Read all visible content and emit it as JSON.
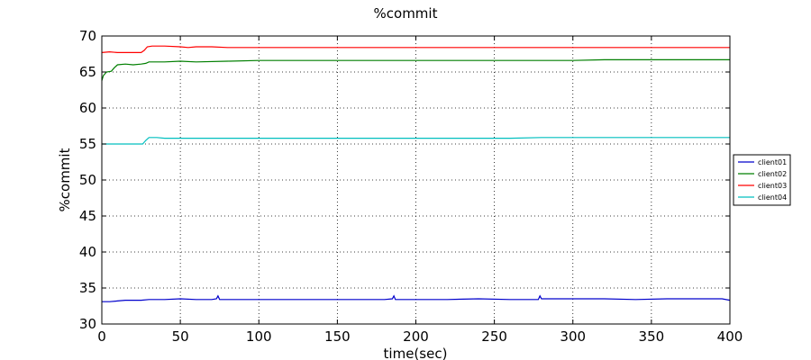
{
  "chart_data": {
    "type": "line",
    "title": "%commit",
    "xlabel": "time(sec)",
    "ylabel": "%commit",
    "xlim": [
      0,
      400
    ],
    "ylim": [
      30,
      70
    ],
    "xticks": [
      0,
      50,
      100,
      150,
      200,
      250,
      300,
      350,
      400
    ],
    "yticks": [
      30,
      35,
      40,
      45,
      50,
      55,
      60,
      65,
      70
    ],
    "grid": true,
    "legend_position": "right",
    "series": [
      {
        "name": "client01",
        "color": "#0000cc",
        "points": [
          [
            0,
            33.1
          ],
          [
            5,
            33.1
          ],
          [
            10,
            33.2
          ],
          [
            15,
            33.3
          ],
          [
            20,
            33.3
          ],
          [
            25,
            33.3
          ],
          [
            30,
            33.4
          ],
          [
            40,
            33.4
          ],
          [
            50,
            33.5
          ],
          [
            60,
            33.4
          ],
          [
            70,
            33.4
          ],
          [
            73,
            33.5
          ],
          [
            74,
            33.9
          ],
          [
            75,
            33.4
          ],
          [
            90,
            33.4
          ],
          [
            100,
            33.4
          ],
          [
            120,
            33.4
          ],
          [
            140,
            33.4
          ],
          [
            160,
            33.4
          ],
          [
            180,
            33.4
          ],
          [
            185,
            33.5
          ],
          [
            186,
            33.9
          ],
          [
            187,
            33.4
          ],
          [
            200,
            33.4
          ],
          [
            220,
            33.4
          ],
          [
            240,
            33.5
          ],
          [
            260,
            33.4
          ],
          [
            278,
            33.4
          ],
          [
            279,
            33.9
          ],
          [
            280,
            33.5
          ],
          [
            300,
            33.5
          ],
          [
            320,
            33.5
          ],
          [
            340,
            33.4
          ],
          [
            360,
            33.5
          ],
          [
            380,
            33.5
          ],
          [
            395,
            33.5
          ],
          [
            400,
            33.3
          ]
        ]
      },
      {
        "name": "client02",
        "color": "#007f00",
        "points": [
          [
            0,
            63.8
          ],
          [
            1,
            64.5
          ],
          [
            3,
            65.0
          ],
          [
            6,
            65.1
          ],
          [
            8,
            65.6
          ],
          [
            10,
            66.0
          ],
          [
            15,
            66.1
          ],
          [
            20,
            66.0
          ],
          [
            25,
            66.1
          ],
          [
            28,
            66.2
          ],
          [
            30,
            66.4
          ],
          [
            40,
            66.4
          ],
          [
            50,
            66.5
          ],
          [
            60,
            66.4
          ],
          [
            80,
            66.5
          ],
          [
            100,
            66.6
          ],
          [
            120,
            66.6
          ],
          [
            140,
            66.6
          ],
          [
            160,
            66.6
          ],
          [
            180,
            66.6
          ],
          [
            200,
            66.6
          ],
          [
            220,
            66.6
          ],
          [
            240,
            66.6
          ],
          [
            260,
            66.6
          ],
          [
            280,
            66.6
          ],
          [
            300,
            66.6
          ],
          [
            320,
            66.7
          ],
          [
            340,
            66.7
          ],
          [
            360,
            66.7
          ],
          [
            380,
            66.7
          ],
          [
            400,
            66.7
          ]
        ]
      },
      {
        "name": "client03",
        "color": "#ff0000",
        "points": [
          [
            0,
            67.7
          ],
          [
            5,
            67.8
          ],
          [
            10,
            67.7
          ],
          [
            15,
            67.7
          ],
          [
            20,
            67.7
          ],
          [
            25,
            67.7
          ],
          [
            27,
            68.0
          ],
          [
            29,
            68.5
          ],
          [
            32,
            68.6
          ],
          [
            40,
            68.6
          ],
          [
            50,
            68.5
          ],
          [
            55,
            68.4
          ],
          [
            60,
            68.5
          ],
          [
            70,
            68.5
          ],
          [
            80,
            68.4
          ],
          [
            100,
            68.4
          ],
          [
            120,
            68.4
          ],
          [
            140,
            68.4
          ],
          [
            160,
            68.4
          ],
          [
            180,
            68.4
          ],
          [
            200,
            68.4
          ],
          [
            220,
            68.4
          ],
          [
            240,
            68.4
          ],
          [
            260,
            68.4
          ],
          [
            280,
            68.4
          ],
          [
            300,
            68.4
          ],
          [
            320,
            68.4
          ],
          [
            340,
            68.4
          ],
          [
            360,
            68.4
          ],
          [
            380,
            68.4
          ],
          [
            400,
            68.4
          ]
        ]
      },
      {
        "name": "client04",
        "color": "#00bfbf",
        "points": [
          [
            0,
            55.0
          ],
          [
            5,
            55.0
          ],
          [
            10,
            55.0
          ],
          [
            15,
            55.0
          ],
          [
            20,
            55.0
          ],
          [
            26,
            55.0
          ],
          [
            28,
            55.5
          ],
          [
            30,
            55.9
          ],
          [
            35,
            55.9
          ],
          [
            40,
            55.8
          ],
          [
            60,
            55.8
          ],
          [
            80,
            55.8
          ],
          [
            100,
            55.8
          ],
          [
            120,
            55.8
          ],
          [
            140,
            55.8
          ],
          [
            160,
            55.8
          ],
          [
            180,
            55.8
          ],
          [
            200,
            55.8
          ],
          [
            220,
            55.8
          ],
          [
            240,
            55.8
          ],
          [
            260,
            55.8
          ],
          [
            280,
            55.9
          ],
          [
            300,
            55.9
          ],
          [
            320,
            55.9
          ],
          [
            340,
            55.9
          ],
          [
            360,
            55.9
          ],
          [
            380,
            55.9
          ],
          [
            400,
            55.9
          ]
        ]
      }
    ]
  }
}
